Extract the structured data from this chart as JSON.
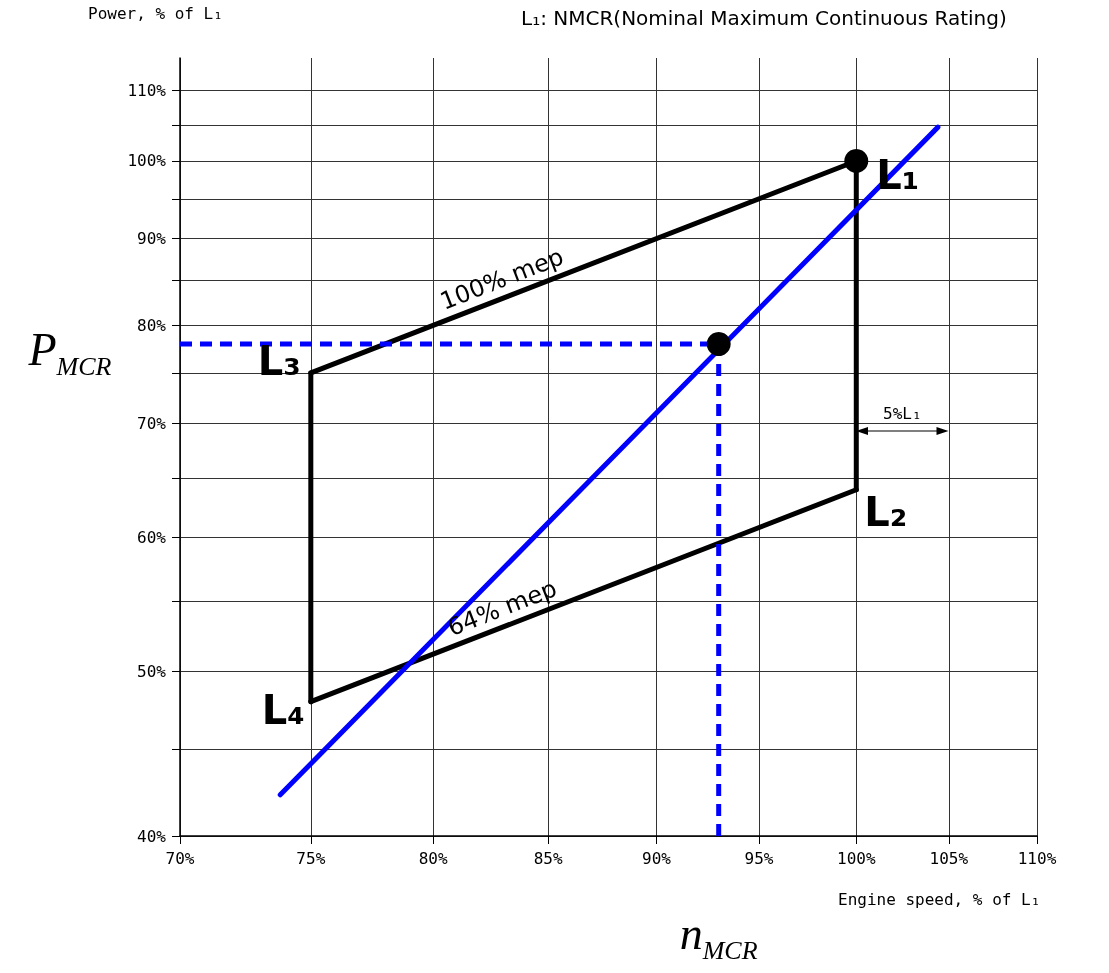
{
  "chart_data": {
    "type": "line",
    "title": "L₁: NMCR(Nominal Maximum Continuous Rating)",
    "xlabel": "Engine speed, % of L₁",
    "ylabel": "Power, % of L₁",
    "log": "xy",
    "grid": true,
    "xlim": [
      70,
      110
    ],
    "ylim": [
      40,
      115
    ],
    "xticks": [
      {
        "value": 70,
        "label": "70%"
      },
      {
        "value": 75,
        "label": "75%"
      },
      {
        "value": 80,
        "label": "80%"
      },
      {
        "value": 85,
        "label": "85%"
      },
      {
        "value": 90,
        "label": "90%"
      },
      {
        "value": 95,
        "label": "95%"
      },
      {
        "value": 100,
        "label": "100%"
      },
      {
        "value": 105,
        "label": "105%"
      },
      {
        "value": 110,
        "label": "110%"
      }
    ],
    "yticks": [
      {
        "value": 40,
        "label": "40%"
      },
      {
        "value": 45,
        "label": null
      },
      {
        "value": 50,
        "label": "50%"
      },
      {
        "value": 55,
        "label": null
      },
      {
        "value": 60,
        "label": "60%"
      },
      {
        "value": 65,
        "label": null
      },
      {
        "value": 70,
        "label": "70%"
      },
      {
        "value": 75,
        "label": null
      },
      {
        "value": 80,
        "label": "80%"
      },
      {
        "value": 85,
        "label": null
      },
      {
        "value": 90,
        "label": "90%"
      },
      {
        "value": 95,
        "label": null
      },
      {
        "value": 100,
        "label": "100%"
      },
      {
        "value": 105,
        "label": null
      },
      {
        "value": 110,
        "label": "110%"
      }
    ],
    "series": [
      {
        "color": "#000000",
        "line_style": "solid",
        "x": [
          75,
          100
        ],
        "values": [
          75,
          100
        ]
      },
      {
        "color": "#000000",
        "line_style": "solid",
        "x": [
          100,
          100
        ],
        "values": [
          64,
          100
        ]
      },
      {
        "color": "#000000",
        "line_style": "solid",
        "x": [
          75,
          100
        ],
        "values": [
          48,
          64
        ]
      },
      {
        "color": "#000000",
        "line_style": "solid",
        "x": [
          75,
          75
        ],
        "values": [
          48,
          75
        ]
      },
      {
        "color": "#0000ff",
        "line_style": "solid",
        "x": [
          73.8,
          104.4
        ],
        "values": [
          42.3,
          104.7
        ]
      },
      {
        "color": "#0000ff",
        "line_style": "dashed",
        "x": [
          70,
          93
        ],
        "values": [
          78,
          78
        ]
      },
      {
        "color": "#0000ff",
        "line_style": "dashed",
        "x": [
          93,
          93
        ],
        "values": [
          40,
          78
        ]
      },
      {
        "type": "scatter",
        "color": "#000000",
        "x": [
          100,
          93
        ],
        "values": [
          100,
          78
        ]
      }
    ],
    "annotations": [
      {
        "text": "L₁",
        "x": 100,
        "y": 100
      },
      {
        "text": "L₂",
        "x": 100,
        "y": 64
      },
      {
        "text": "L₃",
        "x": 75,
        "y": 75
      },
      {
        "text": "L₄",
        "x": 75,
        "y": 48
      },
      "100% mep",
      "64% mep",
      "5%L₁",
      {
        "text": "P$_{MCR}$",
        "x": 70,
        "y": 78
      },
      {
        "text": "n$_{MCR}$",
        "x": 93,
        "y": 40
      }
    ]
  }
}
